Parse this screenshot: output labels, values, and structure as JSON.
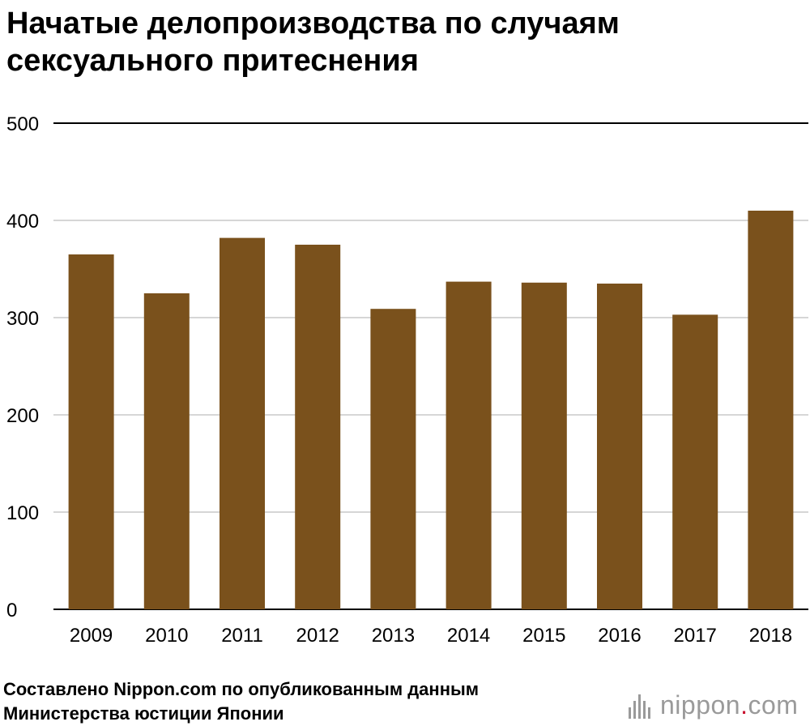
{
  "title_lines": [
    "Начатые делопроизводства по случаям",
    "сексуального притеснения"
  ],
  "source_lines": [
    "Составлено Nippon.com по опубликованным данным",
    "Министерства юстиции Японии"
  ],
  "logo": {
    "name": "nippon",
    "dot": ".",
    "suffix": "com",
    "icon": "nippon-bars-icon"
  },
  "colors": {
    "bar": "#7a511c",
    "grid": "#c8c8c8",
    "top_line": "#000000"
  },
  "chart_data": {
    "type": "bar",
    "title": "Начатые делопроизводства по случаям сексуального притеснения",
    "categories": [
      "2009",
      "2010",
      "2011",
      "2012",
      "2013",
      "2014",
      "2015",
      "2016",
      "2017",
      "2018"
    ],
    "values": [
      365,
      325,
      382,
      375,
      309,
      337,
      336,
      335,
      303,
      410
    ],
    "yticks": [
      0,
      100,
      200,
      300,
      400,
      500
    ],
    "ylim": [
      0,
      500
    ],
    "xlabel": "",
    "ylabel": "",
    "grid": true
  }
}
